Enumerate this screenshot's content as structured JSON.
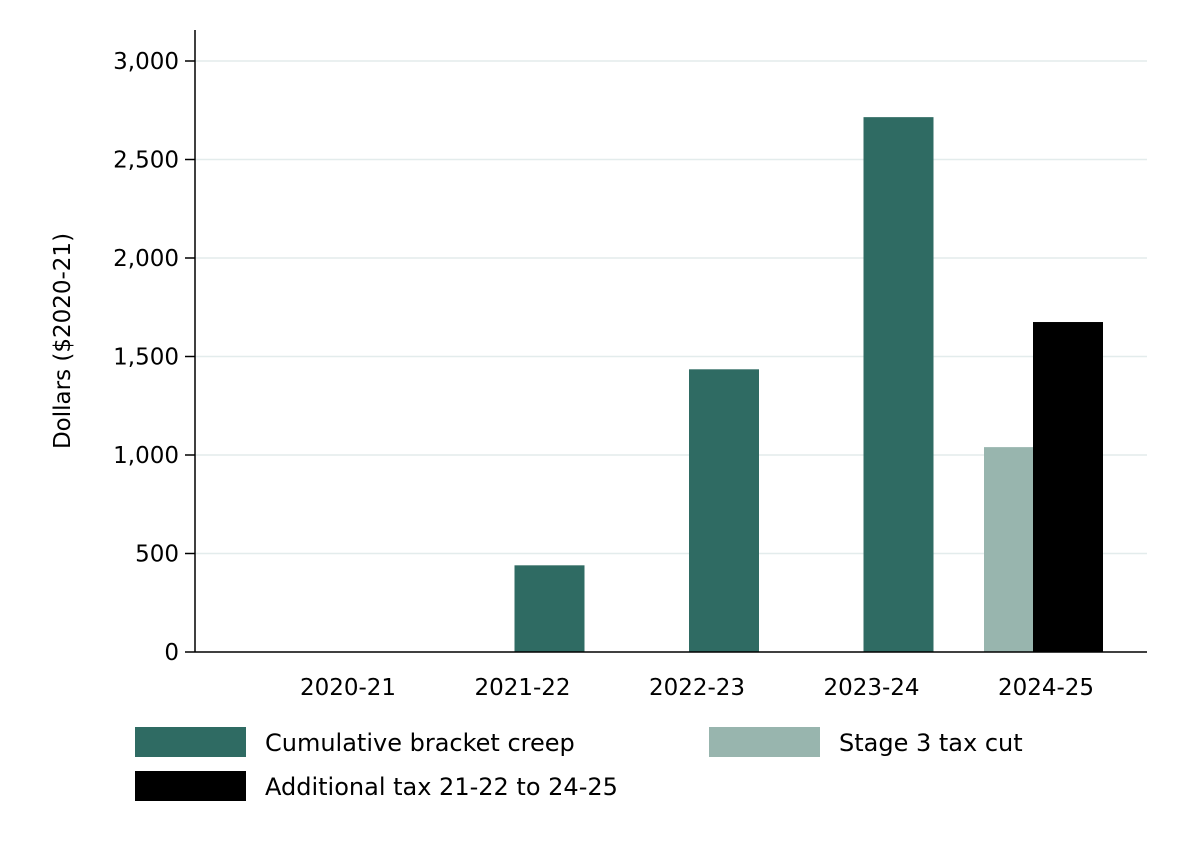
{
  "chart_data": {
    "type": "bar",
    "title": "",
    "xlabel": "",
    "ylabel": "Dollars ($2020-21)",
    "ylim": [
      0,
      3000
    ],
    "yticks": [
      0,
      500,
      1000,
      1500,
      2000,
      2500,
      3000
    ],
    "ytick_labels": [
      "0",
      "500",
      "1,000",
      "1,500",
      "2,000",
      "2,500",
      "3,000"
    ],
    "categories": [
      "2020-21",
      "2021-22",
      "2022-23",
      "2023-24",
      "2024-25"
    ],
    "grid": "horizontal",
    "legend_position": "bottom",
    "series": [
      {
        "name": "Cumulative bracket creep",
        "color": "#2f6b63",
        "values": [
          0,
          440,
          1435,
          2715,
          null
        ]
      },
      {
        "name": "Stage 3 tax cut",
        "color": "#98b5ae",
        "values": [
          null,
          null,
          null,
          null,
          1040
        ]
      },
      {
        "name": "Additional tax 21-22 to 24-25",
        "color": "#000000",
        "values": [
          null,
          null,
          null,
          null,
          1675
        ]
      }
    ]
  }
}
